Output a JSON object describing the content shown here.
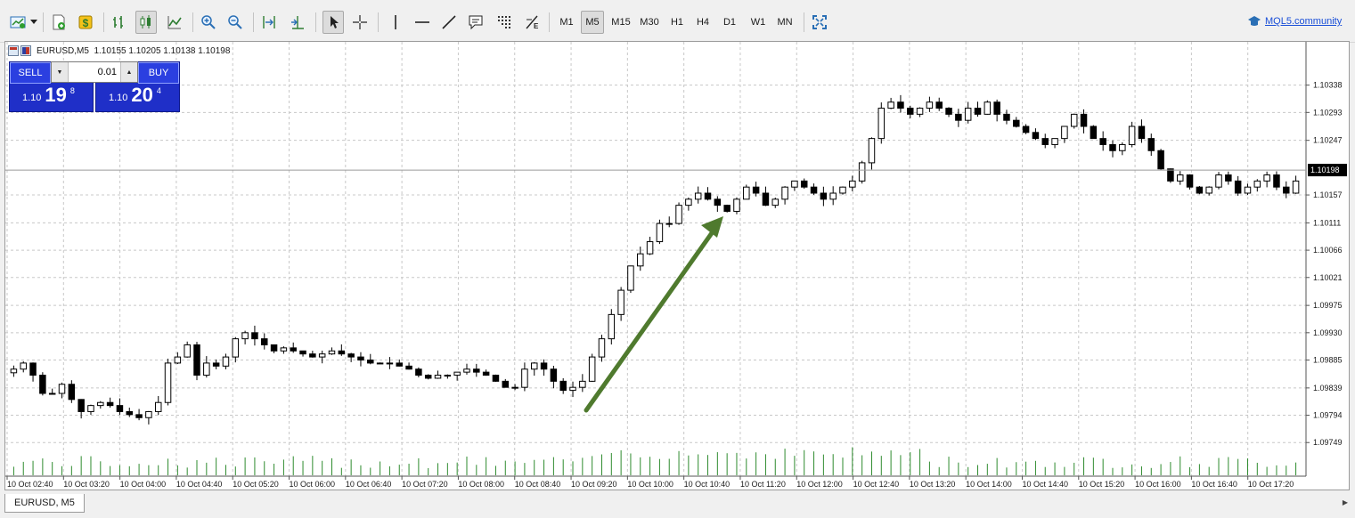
{
  "toolbar": {
    "timeframes": [
      "M1",
      "M5",
      "M15",
      "M30",
      "H1",
      "H4",
      "D1",
      "W1",
      "MN"
    ],
    "active_timeframe": "M5",
    "community_link": "MQL5.community",
    "icons": [
      "new-chart-icon",
      "dropdown-arrow-icon",
      "profiles-icon",
      "market-watch-icon",
      "bar-chart-icon",
      "candlestick-icon",
      "line-chart-icon",
      "zoom-in-icon",
      "zoom-out-icon",
      "chart-shift-icon",
      "autoscroll-icon",
      "cursor-icon",
      "crosshair-icon",
      "vertical-line-icon",
      "horizontal-line-icon",
      "trendline-icon",
      "text-label-icon",
      "grid-icon",
      "fibonacci-icon",
      "fullscreen-icon",
      "graduation-cap-icon"
    ]
  },
  "chart": {
    "header_text": "EURUSD,M5  1.10155 1.10205 1.10138 1.10198",
    "current_price_label": "1.10198",
    "y_ticks": [
      "1.10338",
      "1.10293",
      "1.10247",
      "1.10157",
      "1.10111",
      "1.10066",
      "1.10021",
      "1.09975",
      "1.09930",
      "1.09885",
      "1.09839",
      "1.09794",
      "1.09749"
    ],
    "x_ticks": [
      "10 Oct 02:40",
      "10 Oct 03:20",
      "10 Oct 04:00",
      "10 Oct 04:40",
      "10 Oct 05:20",
      "10 Oct 06:00",
      "10 Oct 06:40",
      "10 Oct 07:20",
      "10 Oct 08:00",
      "10 Oct 08:40",
      "10 Oct 09:20",
      "10 Oct 10:00",
      "10 Oct 10:40",
      "10 Oct 11:20",
      "10 Oct 12:00",
      "10 Oct 12:40",
      "10 Oct 13:20",
      "10 Oct 14:00",
      "10 Oct 14:40",
      "10 Oct 15:20",
      "10 Oct 16:00",
      "10 Oct 16:40",
      "10 Oct 17:20"
    ],
    "colors": {
      "arrow": "#4f7a2e",
      "volume": "#2e8b2e",
      "grid": "#c8c8c8"
    }
  },
  "trade": {
    "sell_label": "SELL",
    "buy_label": "BUY",
    "lot": "0.01",
    "sell_prefix": "1.10",
    "sell_big": "19",
    "sell_sup": "8",
    "buy_prefix": "1.10",
    "buy_big": "20",
    "buy_sup": "4"
  },
  "tabs": {
    "active": "EURUSD, M5"
  },
  "chart_data": {
    "type": "candlestick",
    "symbol": "EURUSD",
    "timeframe": "M5",
    "ylim": [
      1.0972,
      1.1038
    ],
    "closes": [
      1.0987,
      1.0988,
      1.0986,
      1.0983,
      1.0983,
      1.09845,
      1.0982,
      1.098,
      1.0981,
      1.09815,
      1.0981,
      1.098,
      1.09795,
      1.0979,
      1.098,
      1.09815,
      1.0988,
      1.0989,
      1.0991,
      1.0986,
      1.0988,
      1.09875,
      1.0989,
      1.0992,
      1.0993,
      1.0992,
      1.0991,
      1.099,
      1.09905,
      1.099,
      1.09895,
      1.0989,
      1.09895,
      1.099,
      1.09895,
      1.0989,
      1.09885,
      1.0988,
      1.0988,
      1.0988,
      1.09875,
      1.0987,
      1.0986,
      1.09855,
      1.0986,
      1.0986,
      1.09865,
      1.0987,
      1.09865,
      1.0986,
      1.0985,
      1.0984,
      1.0984,
      1.0987,
      1.0988,
      1.0987,
      1.0985,
      1.09835,
      1.0984,
      1.0985,
      1.0989,
      1.0992,
      1.0996,
      1.1,
      1.1004,
      1.1006,
      1.1008,
      1.1011,
      1.1011,
      1.1014,
      1.1015,
      1.1016,
      1.1015,
      1.1014,
      1.1013,
      1.1015,
      1.1017,
      1.1016,
      1.1014,
      1.1015,
      1.1017,
      1.1018,
      1.1017,
      1.1016,
      1.1015,
      1.1016,
      1.1017,
      1.1018,
      1.1021,
      1.1025,
      1.103,
      1.1031,
      1.103,
      1.1029,
      1.103,
      1.1031,
      1.103,
      1.1029,
      1.1028,
      1.103,
      1.1029,
      1.1031,
      1.1029,
      1.1028,
      1.1027,
      1.1026,
      1.1025,
      1.1024,
      1.1025,
      1.1027,
      1.1029,
      1.1027,
      1.1025,
      1.1024,
      1.1023,
      1.1024,
      1.1027,
      1.1025,
      1.1023,
      1.102,
      1.1018,
      1.1019,
      1.1017,
      1.1016,
      1.1017,
      1.1019,
      1.1018,
      1.1016,
      1.1017,
      1.1018,
      1.1019,
      1.1017,
      1.1016,
      1.1018
    ],
    "arrow_annotation": {
      "from_time": "10 Oct 09:20",
      "to_time": "10 Oct 10:40",
      "direction": "up"
    }
  }
}
